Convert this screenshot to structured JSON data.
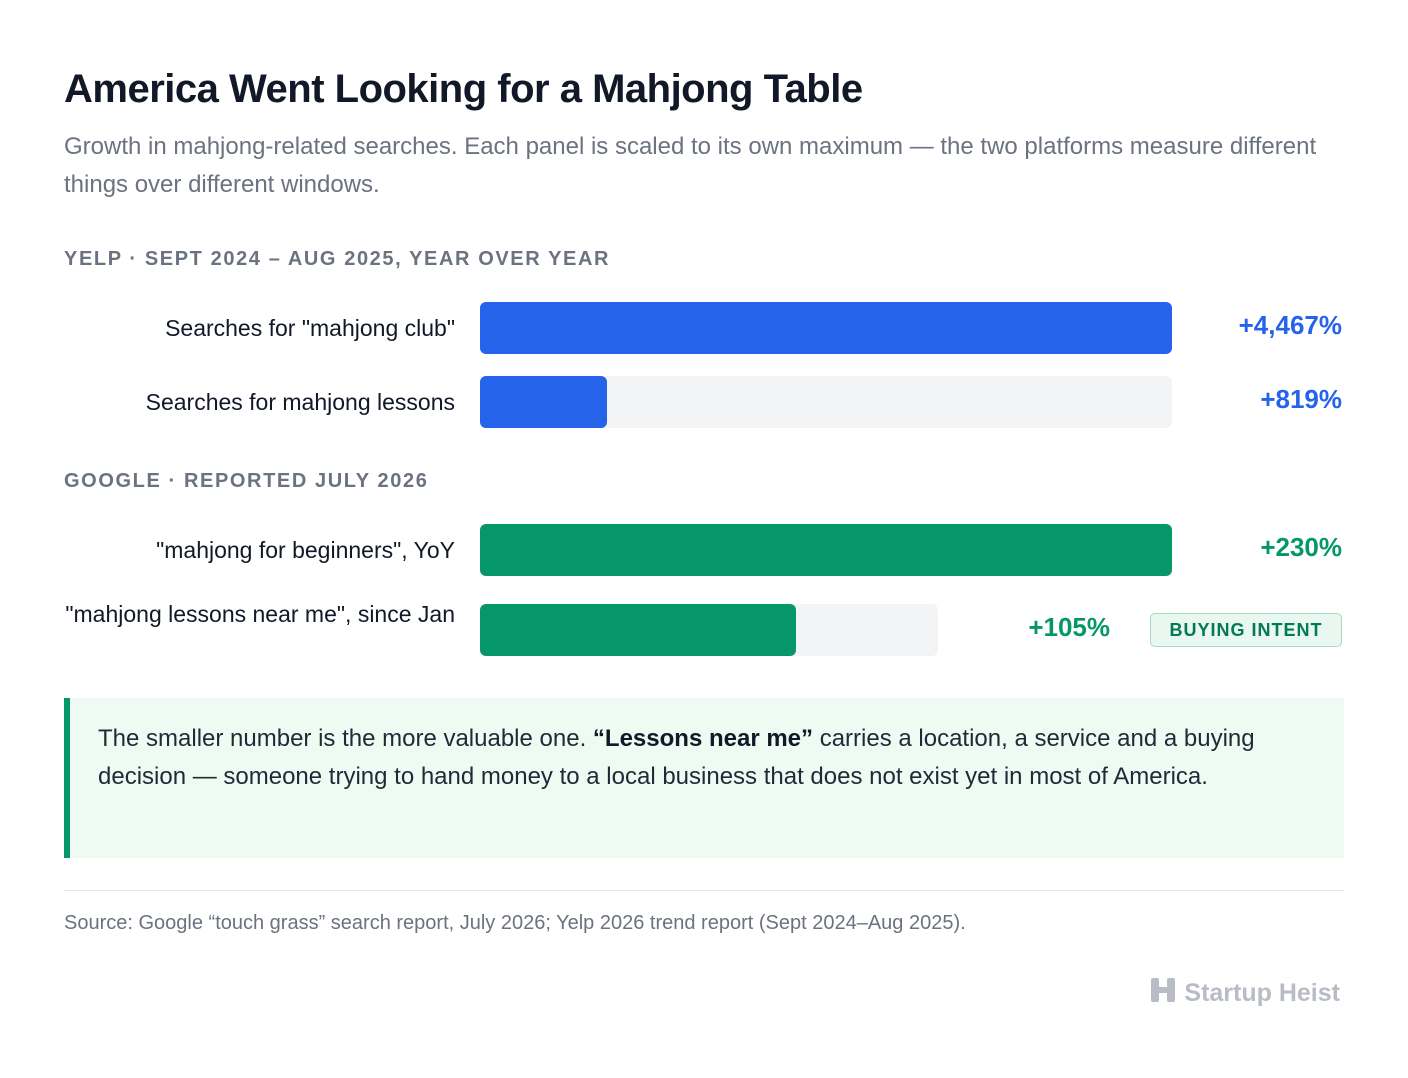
{
  "title": "America Went Looking for a Mahjong Table",
  "subtitle": "Growth in mahjong-related searches. Each panel is scaled to its own maximum — the two platforms measure different things over different windows.",
  "colors": {
    "yelp": "#2563eb",
    "google": "#059669",
    "track": "#f3f4f6"
  },
  "chart_data": [
    {
      "type": "bar",
      "panel": "YELP · SEPT 2024 – AUG 2025, YEAR OVER YEAR",
      "categories": [
        "Searches for \"mahjong club\"",
        "Searches for mahjong lessons"
      ],
      "values": [
        4467,
        819
      ],
      "value_labels": [
        "+4,467%",
        "+819%"
      ],
      "unit": "%",
      "color": "#2563eb"
    },
    {
      "type": "bar",
      "panel": "GOOGLE · REPORTED JULY 2026",
      "categories": [
        "\"mahjong for beginners\", YoY",
        "\"mahjong lessons near me\", since Jan"
      ],
      "values": [
        230,
        105
      ],
      "value_labels": [
        "+230%",
        "+105%"
      ],
      "unit": "%",
      "color": "#059669",
      "badge": "BUYING INTENT"
    }
  ],
  "callout": {
    "lead": "The smaller number is the more valuable one.",
    "emphasis": "“Lessons near me”",
    "rest": "carries a location, a service and a buying decision — someone trying to hand money to a local business that does not exist yet in most of America."
  },
  "source": "Source: Google “touch grass” search report, July 2026; Yelp 2026 trend report (Sept 2024–Aug 2025).",
  "brand": {
    "name": "Startup Heist",
    "icon": "h-logo-icon"
  }
}
